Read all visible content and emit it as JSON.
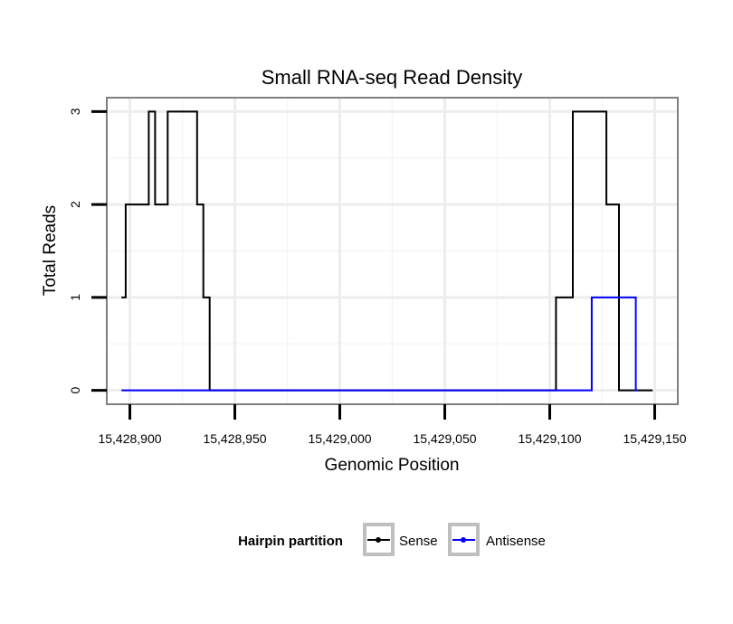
{
  "chart_data": {
    "type": "line",
    "title": "Small RNA-seq Read Density",
    "xlabel": "Genomic Position",
    "ylabel": "Total Reads",
    "xlim": [
      15428889,
      15429161
    ],
    "ylim": [
      -0.15,
      3.15
    ],
    "x_ticks": [
      15428900,
      15428950,
      15429000,
      15429050,
      15429100,
      15429150
    ],
    "x_tick_labels": [
      "15,428,900",
      "15,428,950",
      "15,429,000",
      "15,429,050",
      "15,429,100",
      "15,429,150"
    ],
    "y_ticks": [
      0,
      1,
      2,
      3
    ],
    "y_tick_labels": [
      "0",
      "1",
      "2",
      "3"
    ],
    "grid": true,
    "legend": {
      "title": "Hairpin partition",
      "placement": "bottom"
    },
    "series": [
      {
        "name": "Sense",
        "color": "#000000",
        "points": [
          [
            15428896,
            1
          ],
          [
            15428898,
            1
          ],
          [
            15428898,
            2
          ],
          [
            15428909,
            2
          ],
          [
            15428909,
            3
          ],
          [
            15428912,
            3
          ],
          [
            15428912,
            2
          ],
          [
            15428918,
            2
          ],
          [
            15428918,
            3
          ],
          [
            15428932,
            3
          ],
          [
            15428932,
            2
          ],
          [
            15428935,
            2
          ],
          [
            15428935,
            1
          ],
          [
            15428938,
            1
          ],
          [
            15428938,
            0
          ],
          [
            15429103,
            0
          ],
          [
            15429103,
            1
          ],
          [
            15429111,
            1
          ],
          [
            15429111,
            3
          ],
          [
            15429127,
            3
          ],
          [
            15429127,
            2
          ],
          [
            15429133,
            2
          ],
          [
            15429133,
            0
          ],
          [
            15429149,
            0
          ]
        ]
      },
      {
        "name": "Antisense",
        "color": "#0000ff",
        "points": [
          [
            15428896,
            0
          ],
          [
            15429120,
            0
          ],
          [
            15429120,
            1
          ],
          [
            15429141,
            1
          ],
          [
            15429141,
            0
          ],
          [
            15429142,
            0
          ]
        ]
      }
    ]
  }
}
